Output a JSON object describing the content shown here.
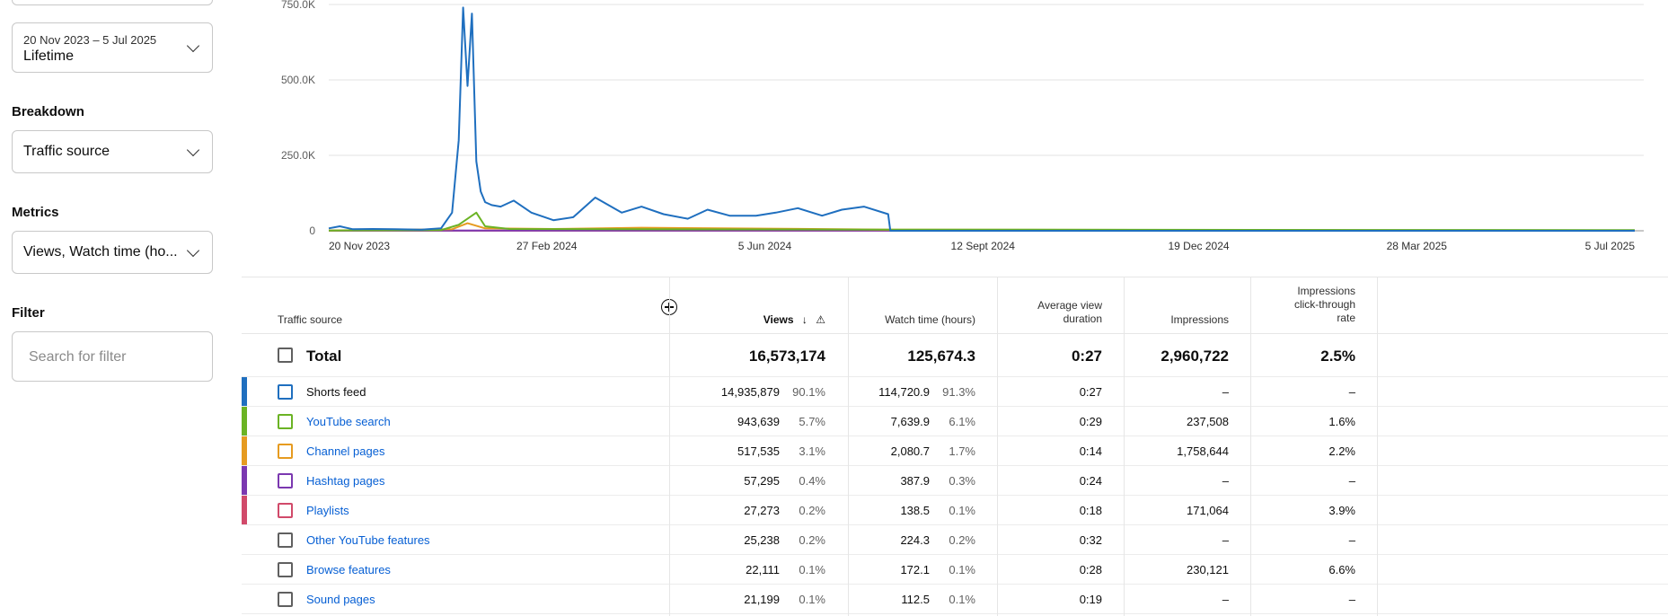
{
  "sidebar": {
    "date_range": {
      "range_text": "20 Nov 2023 – 5 Jul 2025",
      "value": "Lifetime"
    },
    "breakdown": {
      "label": "Breakdown",
      "value": "Traffic source"
    },
    "metrics": {
      "label": "Metrics",
      "value": "Views, Watch time (ho..."
    },
    "filter": {
      "label": "Filter",
      "placeholder": "Search for filter"
    }
  },
  "chart_data": {
    "type": "line",
    "x_tick_labels": [
      "20 Nov 2023",
      "27 Feb 2024",
      "5 Jun 2024",
      "12 Sept 2024",
      "19 Dec 2024",
      "28 Mar 2025",
      "5 Jul 2025"
    ],
    "y_tick_labels": [
      "0",
      "250.0K",
      "500.0K",
      "750.0K"
    ],
    "ylim": [
      0,
      750000
    ],
    "x_range": [
      "20 Nov 2023",
      "5 Jul 2025"
    ],
    "grid": true,
    "series": [
      {
        "color": "#1f6fbf",
        "x": [
          "2023-11-20",
          "2023-11-25",
          "2023-12-01",
          "2023-12-10",
          "2023-12-20",
          "2024-01-01",
          "2024-01-10",
          "2024-01-15",
          "2024-01-18",
          "2024-01-20",
          "2024-01-22",
          "2024-01-24",
          "2024-01-26",
          "2024-01-28",
          "2024-01-30",
          "2024-02-02",
          "2024-02-06",
          "2024-02-12",
          "2024-02-20",
          "2024-03-01",
          "2024-03-10",
          "2024-03-20",
          "2024-04-01",
          "2024-04-10",
          "2024-04-20",
          "2024-05-01",
          "2024-05-10",
          "2024-05-20",
          "2024-06-01",
          "2024-06-10",
          "2024-06-20",
          "2024-07-01",
          "2024-07-10",
          "2024-07-20",
          "2024-07-31",
          "2024-08-01",
          "2025-07-05"
        ],
        "y": [
          8000,
          15000,
          5000,
          6000,
          5000,
          4000,
          8000,
          60000,
          300000,
          740000,
          480000,
          720000,
          230000,
          130000,
          95000,
          85000,
          80000,
          100000,
          60000,
          35000,
          45000,
          110000,
          60000,
          80000,
          55000,
          40000,
          70000,
          50000,
          50000,
          60000,
          75000,
          50000,
          70000,
          80000,
          55000,
          0,
          0
        ]
      },
      {
        "color": "#6bb324",
        "x": [
          "2023-11-20",
          "2024-01-10",
          "2024-01-18",
          "2024-01-22",
          "2024-01-26",
          "2024-01-30",
          "2024-02-10",
          "2024-08-01",
          "2025-07-05"
        ],
        "y": [
          1000,
          2000,
          20000,
          40000,
          60000,
          15000,
          6000,
          4000,
          2000
        ]
      },
      {
        "color": "#e69b20",
        "x": [
          "2023-11-20",
          "2024-01-15",
          "2024-01-22",
          "2024-01-30",
          "2024-03-01",
          "2024-04-10",
          "2024-08-01",
          "2025-07-05"
        ],
        "y": [
          1000,
          5000,
          25000,
          8000,
          6000,
          10000,
          4000,
          1000
        ]
      },
      {
        "color": "#7b38b0",
        "x": [
          "2023-11-20",
          "2025-07-05"
        ],
        "y": [
          500,
          500
        ]
      },
      {
        "color": "#d14a6a",
        "x": [
          "2023-11-20",
          "2025-07-05"
        ],
        "y": [
          300,
          300
        ]
      }
    ]
  },
  "table": {
    "headers": {
      "source": "Traffic source",
      "views": "Views",
      "watch_time": "Watch time (hours)",
      "avg_duration_1": "Average view",
      "avg_duration_2": "duration",
      "impressions": "Impressions",
      "ctr_1": "Impressions",
      "ctr_2": "click-through",
      "ctr_3": "rate"
    },
    "total": {
      "label": "Total",
      "views": "16,573,174",
      "watch_time": "125,674.3",
      "avg_duration": "0:27",
      "impressions": "2,960,722",
      "ctr": "2.5%"
    },
    "rows": [
      {
        "label": "Shorts feed",
        "link": false,
        "color": "#1f6fbf",
        "views": "14,935,879",
        "views_pct": "90.1%",
        "watch_time": "114,720.9",
        "watch_pct": "91.3%",
        "avg_duration": "0:27",
        "impressions": "–",
        "ctr": "–"
      },
      {
        "label": "YouTube search",
        "link": true,
        "color": "#6bb324",
        "views": "943,639",
        "views_pct": "5.7%",
        "watch_time": "7,639.9",
        "watch_pct": "6.1%",
        "avg_duration": "0:29",
        "impressions": "237,508",
        "ctr": "1.6%"
      },
      {
        "label": "Channel pages",
        "link": true,
        "color": "#e69b20",
        "views": "517,535",
        "views_pct": "3.1%",
        "watch_time": "2,080.7",
        "watch_pct": "1.7%",
        "avg_duration": "0:14",
        "impressions": "1,758,644",
        "ctr": "2.2%"
      },
      {
        "label": "Hashtag pages",
        "link": true,
        "color": "#7b38b0",
        "views": "57,295",
        "views_pct": "0.4%",
        "watch_time": "387.9",
        "watch_pct": "0.3%",
        "avg_duration": "0:24",
        "impressions": "–",
        "ctr": "–"
      },
      {
        "label": "Playlists",
        "link": true,
        "color": "#d14a6a",
        "views": "27,273",
        "views_pct": "0.2%",
        "watch_time": "138.5",
        "watch_pct": "0.1%",
        "avg_duration": "0:18",
        "impressions": "171,064",
        "ctr": "3.9%"
      },
      {
        "label": "Other YouTube features",
        "link": true,
        "color": "",
        "views": "25,238",
        "views_pct": "0.2%",
        "watch_time": "224.3",
        "watch_pct": "0.2%",
        "avg_duration": "0:32",
        "impressions": "–",
        "ctr": "–"
      },
      {
        "label": "Browse features",
        "link": true,
        "color": "",
        "views": "22,111",
        "views_pct": "0.1%",
        "watch_time": "172.1",
        "watch_pct": "0.1%",
        "avg_duration": "0:28",
        "impressions": "230,121",
        "ctr": "6.6%"
      },
      {
        "label": "Sound pages",
        "link": true,
        "color": "",
        "views": "21,199",
        "views_pct": "0.1%",
        "watch_time": "112.5",
        "watch_pct": "0.1%",
        "avg_duration": "0:19",
        "impressions": "–",
        "ctr": "–"
      }
    ]
  }
}
